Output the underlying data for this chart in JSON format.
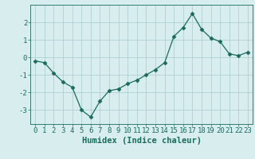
{
  "x": [
    0,
    1,
    2,
    3,
    4,
    5,
    6,
    7,
    8,
    9,
    10,
    11,
    12,
    13,
    14,
    15,
    16,
    17,
    18,
    19,
    20,
    21,
    22,
    23
  ],
  "y": [
    -0.2,
    -0.3,
    -0.9,
    -1.4,
    -1.7,
    -3.0,
    -3.4,
    -2.5,
    -1.9,
    -1.8,
    -1.5,
    -1.3,
    -1.0,
    -0.7,
    -0.3,
    1.2,
    1.7,
    2.5,
    1.6,
    1.1,
    0.9,
    0.2,
    0.1,
    0.3
  ],
  "line_color": "#1a6b5a",
  "marker": "D",
  "marker_size": 2.5,
  "bg_color": "#d8eeee",
  "grid_color": "#b0d0d0",
  "xlabel": "Humidex (Indice chaleur)",
  "xlabel_fontsize": 7.5,
  "tick_fontsize": 6.5,
  "ylim": [
    -3.8,
    3.0
  ],
  "xlim": [
    -0.5,
    23.5
  ],
  "yticks": [
    -3,
    -2,
    -1,
    0,
    1,
    2
  ],
  "xticks": [
    0,
    1,
    2,
    3,
    4,
    5,
    6,
    7,
    8,
    9,
    10,
    11,
    12,
    13,
    14,
    15,
    16,
    17,
    18,
    19,
    20,
    21,
    22,
    23
  ]
}
